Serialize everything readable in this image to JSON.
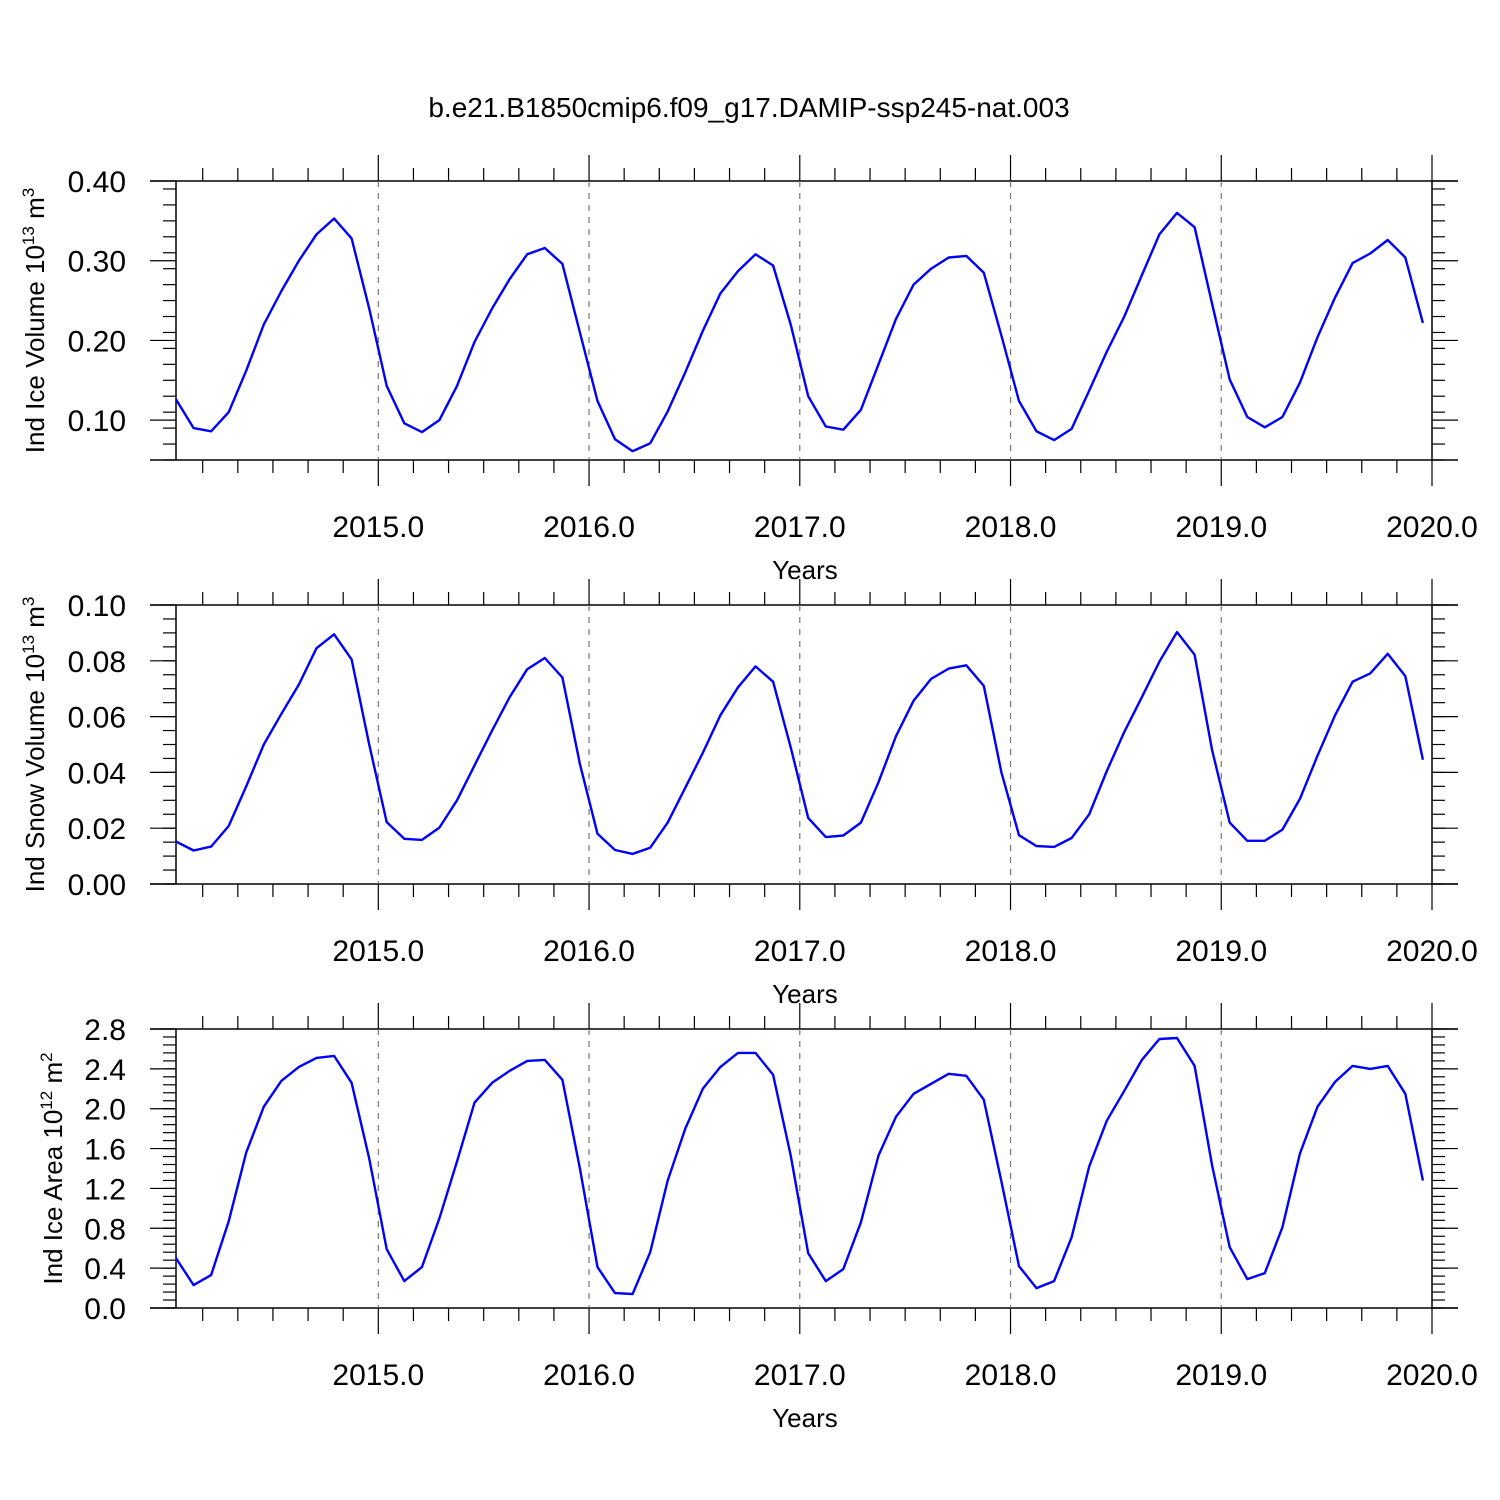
{
  "figure": {
    "title": "b.e21.B1850cmip6.f09_g17.DAMIP-ssp245-nat.003"
  },
  "colors": {
    "line": "#0000ff",
    "background": "#ffffff",
    "axis": "#000000"
  },
  "chart_data": [
    {
      "type": "line",
      "ylabel": "Ind Ice Volume 10",
      "ylabel_exp": "13",
      "ylabel_unit": "m",
      "ylabel_unit_exp": "3",
      "xlabel": "Years",
      "xlim": [
        2014.04,
        2020.0
      ],
      "ylim": [
        0.05,
        0.4
      ],
      "x_ticks": [
        2015.0,
        2016.0,
        2017.0,
        2018.0,
        2019.0,
        2020.0
      ],
      "x_tick_labels": [
        "2015.0",
        "2016.0",
        "2017.0",
        "2018.0",
        "2019.0",
        "2020.0"
      ],
      "y_ticks": [
        0.1,
        0.2,
        0.3,
        0.4
      ],
      "y_tick_labels": [
        "0.10",
        "0.20",
        "0.30",
        "0.40"
      ],
      "y_minor_step": 0.02,
      "grid": "vertical dashed at major x ticks",
      "series": [
        {
          "values": [
            0.126,
            0.09,
            0.086,
            0.11,
            0.162,
            0.22,
            0.262,
            0.3,
            0.333,
            0.353,
            0.328,
            0.24,
            0.143,
            0.096,
            0.085,
            0.1,
            0.143,
            0.198,
            0.24,
            0.277,
            0.308,
            0.316,
            0.296,
            0.21,
            0.124,
            0.076,
            0.061,
            0.071,
            0.111,
            0.16,
            0.212,
            0.259,
            0.287,
            0.308,
            0.294,
            0.22,
            0.13,
            0.092,
            0.088,
            0.113,
            0.17,
            0.227,
            0.27,
            0.29,
            0.304,
            0.306,
            0.285,
            0.206,
            0.124,
            0.086,
            0.075,
            0.089,
            0.137,
            0.186,
            0.23,
            0.282,
            0.333,
            0.36,
            0.342,
            0.246,
            0.151,
            0.104,
            0.091,
            0.104,
            0.147,
            0.204,
            0.254,
            0.297,
            0.309,
            0.326,
            0.304,
            0.222
          ]
        }
      ]
    },
    {
      "type": "line",
      "ylabel": "Ind Snow Volume 10",
      "ylabel_exp": "13",
      "ylabel_unit": "m",
      "ylabel_unit_exp": "3",
      "xlabel": "Years",
      "xlim": [
        2014.04,
        2020.0
      ],
      "ylim": [
        0.0,
        0.1
      ],
      "x_ticks": [
        2015.0,
        2016.0,
        2017.0,
        2018.0,
        2019.0,
        2020.0
      ],
      "x_tick_labels": [
        "2015.0",
        "2016.0",
        "2017.0",
        "2018.0",
        "2019.0",
        "2020.0"
      ],
      "y_ticks": [
        0.0,
        0.02,
        0.04,
        0.06,
        0.08,
        0.1
      ],
      "y_tick_labels": [
        "0.00",
        "0.02",
        "0.04",
        "0.06",
        "0.08",
        "0.10"
      ],
      "y_minor_step": 0.005,
      "grid": "vertical dashed at major x ticks",
      "series": [
        {
          "values": [
            0.0152,
            0.012,
            0.0134,
            0.0208,
            0.035,
            0.05,
            0.061,
            0.0715,
            0.0845,
            0.0895,
            0.0805,
            0.05,
            0.0222,
            0.0162,
            0.0158,
            0.0202,
            0.03,
            0.0425,
            0.055,
            0.067,
            0.077,
            0.081,
            0.074,
            0.043,
            0.018,
            0.0122,
            0.0108,
            0.013,
            0.022,
            0.0345,
            0.047,
            0.0605,
            0.0705,
            0.078,
            0.0725,
            0.049,
            0.0237,
            0.0168,
            0.0174,
            0.022,
            0.0365,
            0.053,
            0.0657,
            0.0735,
            0.0772,
            0.0784,
            0.071,
            0.04,
            0.0175,
            0.0136,
            0.0133,
            0.0165,
            0.025,
            0.0405,
            0.0545,
            0.067,
            0.0797,
            0.0903,
            0.0822,
            0.048,
            0.022,
            0.0155,
            0.0155,
            0.0195,
            0.0305,
            0.046,
            0.0605,
            0.0725,
            0.0755,
            0.0825,
            0.0745,
            0.0445
          ]
        }
      ]
    },
    {
      "type": "line",
      "ylabel": "Ind Ice Area 10",
      "ylabel_exp": "12",
      "ylabel_unit": "m",
      "ylabel_unit_exp": "2",
      "xlabel": "Years",
      "xlim": [
        2014.04,
        2020.0
      ],
      "ylim": [
        0.0,
        2.8
      ],
      "x_ticks": [
        2015.0,
        2016.0,
        2017.0,
        2018.0,
        2019.0,
        2020.0
      ],
      "x_tick_labels": [
        "2015.0",
        "2016.0",
        "2017.0",
        "2018.0",
        "2019.0",
        "2020.0"
      ],
      "y_ticks": [
        0.0,
        0.4,
        0.8,
        1.2,
        1.6,
        2.0,
        2.4,
        2.8
      ],
      "y_tick_labels": [
        "0.0",
        "0.4",
        "0.8",
        "1.2",
        "1.6",
        "2.0",
        "2.4",
        "2.8"
      ],
      "y_minor_step": 0.08,
      "grid": "vertical dashed at major x ticks",
      "series": [
        {
          "values": [
            0.5,
            0.23,
            0.33,
            0.87,
            1.56,
            2.02,
            2.28,
            2.42,
            2.51,
            2.53,
            2.26,
            1.5,
            0.59,
            0.27,
            0.41,
            0.9,
            1.47,
            2.06,
            2.26,
            2.38,
            2.48,
            2.49,
            2.29,
            1.4,
            0.41,
            0.15,
            0.14,
            0.56,
            1.28,
            1.8,
            2.2,
            2.42,
            2.56,
            2.56,
            2.34,
            1.53,
            0.55,
            0.27,
            0.39,
            0.86,
            1.53,
            1.92,
            2.15,
            2.25,
            2.35,
            2.33,
            2.09,
            1.27,
            0.42,
            0.2,
            0.27,
            0.71,
            1.42,
            1.88,
            2.18,
            2.49,
            2.7,
            2.71,
            2.43,
            1.43,
            0.61,
            0.29,
            0.35,
            0.81,
            1.55,
            2.02,
            2.27,
            2.43,
            2.4,
            2.43,
            2.15,
            1.28
          ]
        }
      ]
    }
  ]
}
